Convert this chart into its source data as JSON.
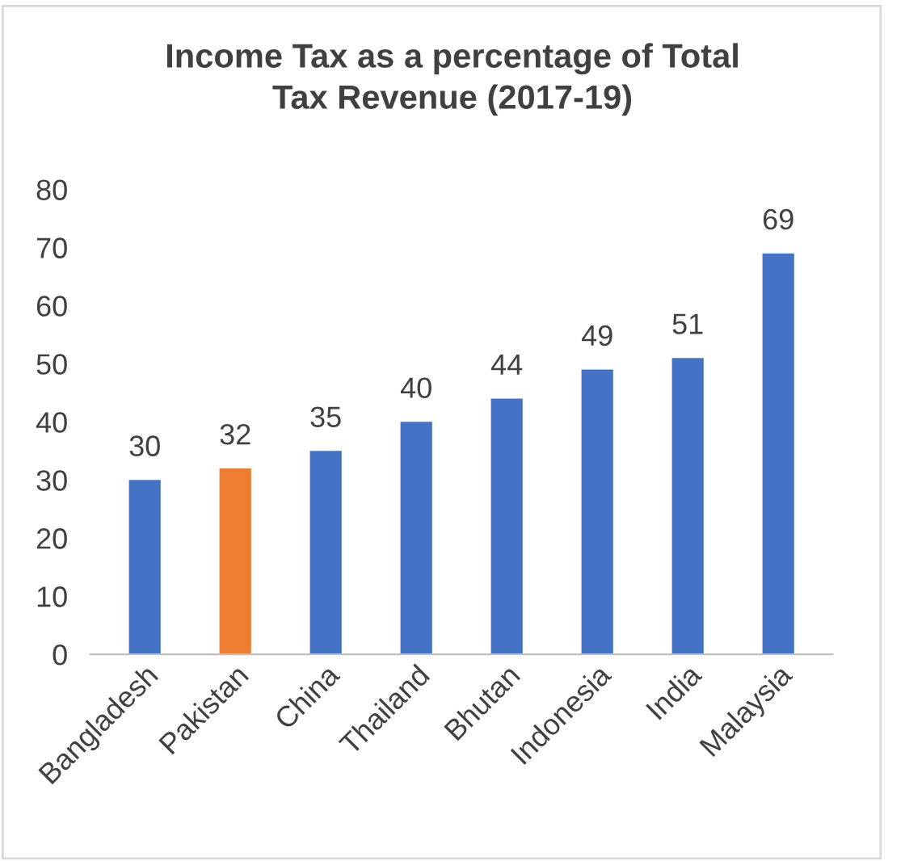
{
  "chart_data": {
    "type": "bar",
    "title": "Income Tax as a percentage of Total\nTax Revenue (2017-19)",
    "categories": [
      "Bangladesh",
      "Pakistan",
      "China",
      "Thailand",
      "Bhutan",
      "Indonesia",
      "India",
      "Malaysia"
    ],
    "values": [
      30,
      32,
      35,
      40,
      44,
      49,
      51,
      69
    ],
    "colors": [
      "#4472c4",
      "#ed7d31",
      "#4472c4",
      "#4472c4",
      "#4472c4",
      "#4472c4",
      "#4472c4",
      "#4472c4"
    ],
    "ylim": [
      0,
      80
    ],
    "yticks": [
      0,
      10,
      20,
      30,
      40,
      50,
      60,
      70,
      80
    ],
    "grid": false,
    "data_labels": true
  }
}
